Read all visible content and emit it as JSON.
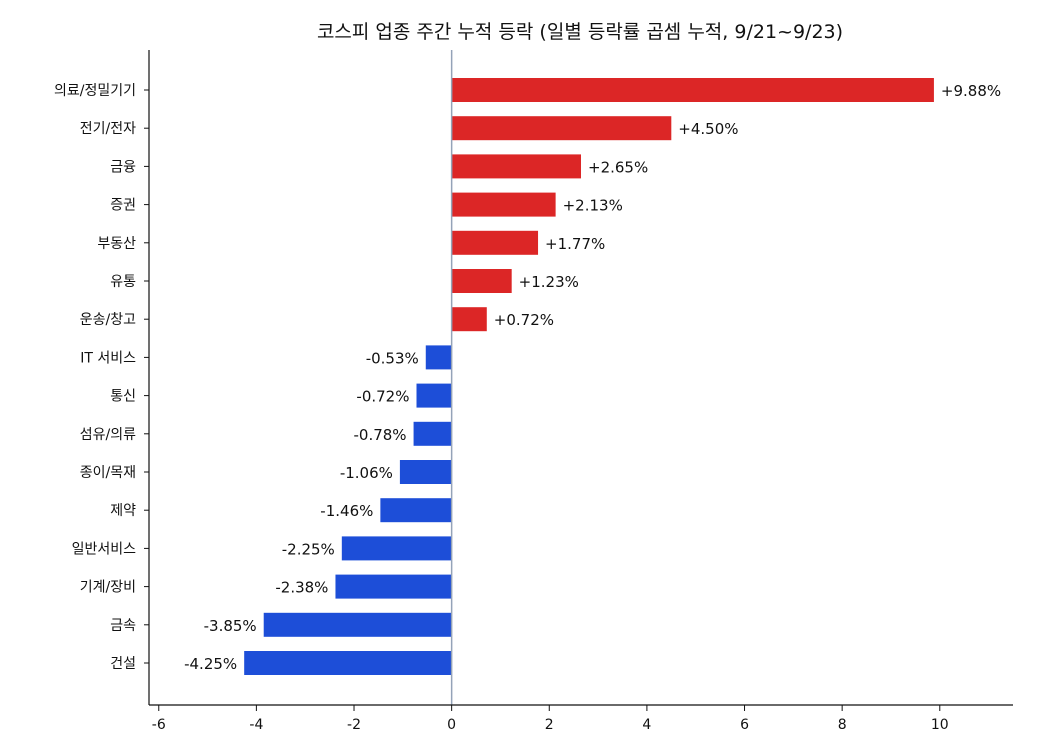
{
  "chart_data": {
    "type": "bar",
    "orientation": "horizontal",
    "title": "코스피 업종 주간 누적 등락 (일별 등락률 곱셈 누적, 9/21~9/23)",
    "xlabel": "",
    "ylabel": "",
    "xlim": [
      -6.2,
      11.5
    ],
    "x_ticks": [
      -6,
      -4,
      -2,
      0,
      2,
      4,
      6,
      8,
      10
    ],
    "grid": false,
    "legend": "none",
    "colors": {
      "positive": "#dc2626",
      "negative": "#1d4ed8",
      "zero_line": "#94a3b8",
      "axis": "#111111"
    },
    "categories": [
      "의료/정밀기기",
      "전기/전자",
      "금융",
      "증권",
      "부동산",
      "유통",
      "운송/창고",
      "IT 서비스",
      "통신",
      "섬유/의류",
      "종이/목재",
      "제약",
      "일반서비스",
      "기계/장비",
      "금속",
      "건설"
    ],
    "values": [
      9.88,
      4.5,
      2.65,
      2.13,
      1.77,
      1.23,
      0.72,
      -0.53,
      -0.72,
      -0.78,
      -1.06,
      -1.46,
      -2.25,
      -2.38,
      -3.85,
      -4.25
    ],
    "value_labels": [
      "+9.88%",
      "+4.50%",
      "+2.65%",
      "+2.13%",
      "+1.77%",
      "+1.23%",
      "+0.72%",
      "-0.53%",
      "-0.72%",
      "-0.78%",
      "-1.06%",
      "-1.46%",
      "-2.25%",
      "-2.38%",
      "-3.85%",
      "-4.25%"
    ]
  }
}
